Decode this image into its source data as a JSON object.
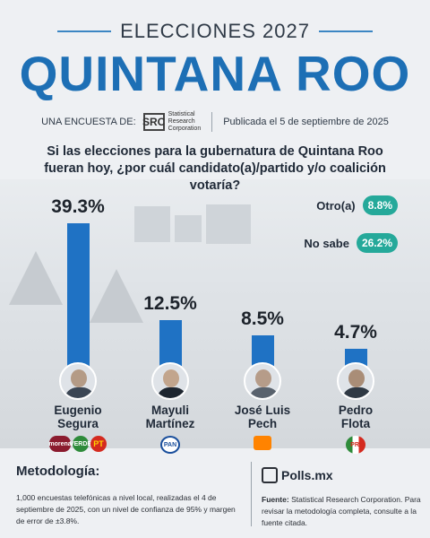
{
  "header": {
    "kicker": "ELECCIONES 2027",
    "title": "QUINTANA ROO",
    "byline_prefix": "UNA ENCUESTA DE:",
    "pollster_abbr": "SRC",
    "pollster_name_line1": "Statistical",
    "pollster_name_line2": "Research",
    "pollster_name_line3": "Corporation",
    "published": "Publicada el 5 de septiembre de 2025"
  },
  "question": "Si las elecciones para la gubernatura de Quintana Roo fueran hoy, ¿por cuál candidato(a)/partido y/o coalición votaría?",
  "colors": {
    "bar": "#1f72c4",
    "title": "#1d6fb5",
    "pill": "#25a99a"
  },
  "chart_data": {
    "type": "bar",
    "categories": [
      "Eugenio Segura",
      "Mayuli Martínez",
      "José Luis Pech",
      "Pedro Flota"
    ],
    "values": [
      39.3,
      12.5,
      8.5,
      4.7
    ],
    "value_labels": [
      "39.3%",
      "12.5%",
      "8.5%",
      "4.7%"
    ],
    "title": "",
    "xlabel": "",
    "ylabel": "",
    "grid": false,
    "side_stats": [
      {
        "label": "Otro(a)",
        "value": 8.8,
        "value_label": "8.8%"
      },
      {
        "label": "No sabe",
        "value": 26.2,
        "value_label": "26.2%"
      }
    ]
  },
  "candidates": [
    {
      "first": "Eugenio",
      "last": "Segura",
      "parties": [
        "morena",
        "VERDE",
        "PT"
      ]
    },
    {
      "first": "Mayuli",
      "last": "Martínez",
      "parties": [
        "PAN"
      ]
    },
    {
      "first": "José Luis",
      "last": "Pech",
      "parties": [
        "MC"
      ]
    },
    {
      "first": "Pedro",
      "last": "Flota",
      "parties": [
        "PRI"
      ]
    }
  ],
  "footer": {
    "methodology_title": "Metodología:",
    "methodology_text": "1,000 encuestas telefónicas a nivel local, realizadas el 4 de septiembre de 2025, con un nivel de confianza de 95% y margen de error de ±3.8%.",
    "brand": "Polls.mx",
    "source_label": "Fuente:",
    "source_text": "Statistical Research Corporation. Para revisar la metodología completa, consulte a la fuente citada."
  }
}
